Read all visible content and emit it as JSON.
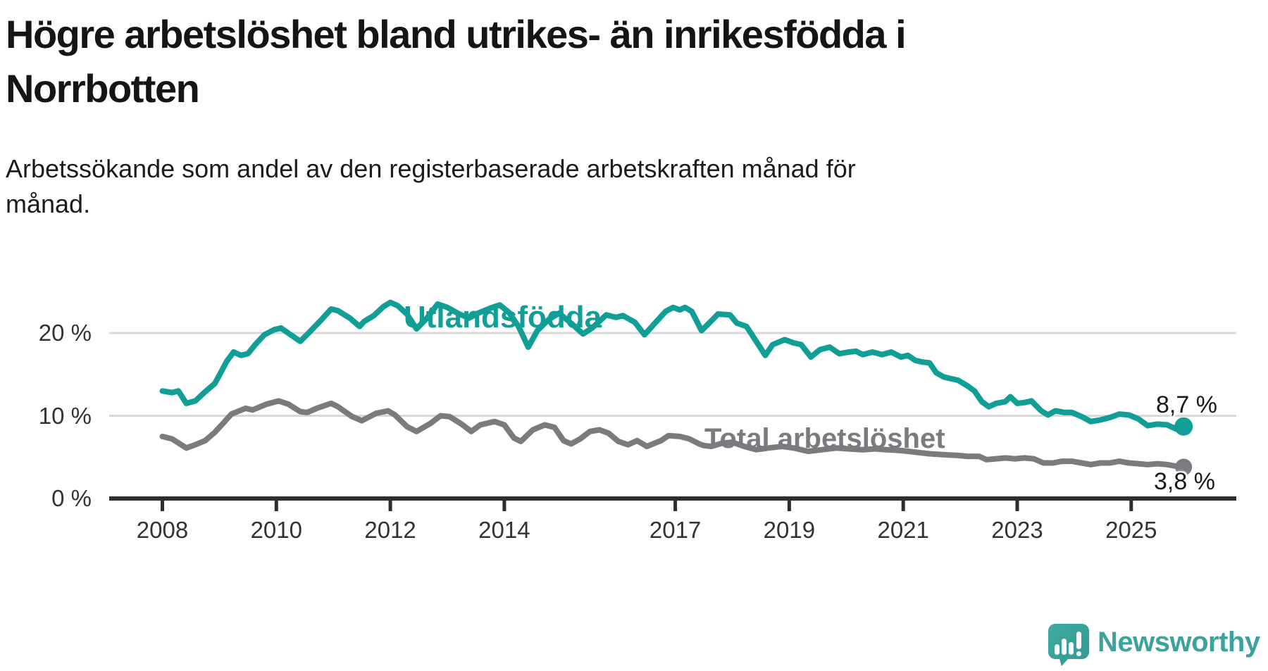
{
  "title": {
    "line1": "Högre arbetslöshet bland utrikes- än inrikesfödda i",
    "line2": "Norrbotten"
  },
  "subtitle": {
    "line1": "Arbetssökande som andel av den registerbaserade arbetskraften månad för",
    "line2": "månad."
  },
  "colors": {
    "teal_series": "#119e96",
    "gray_series": "#7b7b7f",
    "gridline": "#d8d8d8",
    "axis": "#2e2e2e",
    "tick_text": "#333333",
    "title_text": "#151515",
    "logo_teal": "#3ba39b"
  },
  "logo": {
    "text": "Newsworthy",
    "icon": "newsworthy-speech-bubble-bar-chart-icon"
  },
  "chart_data": {
    "type": "line",
    "title": "Högre arbetslöshet bland utrikes- än inrikesfödda i Norrbotten",
    "xlabel": "",
    "ylabel": "Arbetssökande som andel av den registerbaserade arbetskraften",
    "grid": "horizontal",
    "legend_position": "inline-labels",
    "xlim": [
      2007.95,
      2026.1
    ],
    "ylim": [
      0,
      29
    ],
    "x_ticks": [
      2008,
      2010,
      2012,
      2014,
      2017,
      2019,
      2021,
      2023,
      2025
    ],
    "y_ticks": [
      {
        "value": 20,
        "label": "20 %"
      },
      {
        "value": 10,
        "label": "10 %"
      },
      {
        "value": 0,
        "label": "0 %"
      }
    ],
    "series": [
      {
        "name": "Utlandsfödda",
        "color": "#119e96",
        "end_label": "8,7 %",
        "end_value": 8.7,
        "points": [
          [
            2008.0,
            13.0
          ],
          [
            2008.17,
            12.8
          ],
          [
            2008.28,
            13.0
          ],
          [
            2008.42,
            11.5
          ],
          [
            2008.58,
            11.8
          ],
          [
            2008.75,
            12.9
          ],
          [
            2008.92,
            13.9
          ],
          [
            2009.0,
            14.9
          ],
          [
            2009.13,
            16.6
          ],
          [
            2009.25,
            17.7
          ],
          [
            2009.38,
            17.3
          ],
          [
            2009.5,
            17.5
          ],
          [
            2009.63,
            18.6
          ],
          [
            2009.79,
            19.8
          ],
          [
            2009.96,
            20.4
          ],
          [
            2010.08,
            20.6
          ],
          [
            2010.25,
            19.8
          ],
          [
            2010.42,
            19.0
          ],
          [
            2010.58,
            20.1
          ],
          [
            2010.79,
            21.6
          ],
          [
            2010.96,
            22.9
          ],
          [
            2011.08,
            22.7
          ],
          [
            2011.29,
            21.8
          ],
          [
            2011.46,
            20.8
          ],
          [
            2011.54,
            21.4
          ],
          [
            2011.71,
            22.1
          ],
          [
            2011.88,
            23.2
          ],
          [
            2012.0,
            23.7
          ],
          [
            2012.13,
            23.3
          ],
          [
            2012.29,
            22.3
          ],
          [
            2012.46,
            20.5
          ],
          [
            2012.63,
            21.7
          ],
          [
            2012.83,
            23.5
          ],
          [
            2013.0,
            23.1
          ],
          [
            2013.21,
            22.3
          ],
          [
            2013.38,
            21.8
          ],
          [
            2013.54,
            22.4
          ],
          [
            2013.75,
            23.0
          ],
          [
            2013.92,
            23.4
          ],
          [
            2014.08,
            22.5
          ],
          [
            2014.25,
            20.8
          ],
          [
            2014.42,
            18.3
          ],
          [
            2014.58,
            20.3
          ],
          [
            2014.79,
            21.7
          ],
          [
            2014.96,
            22.4
          ],
          [
            2015.17,
            21.2
          ],
          [
            2015.38,
            19.9
          ],
          [
            2015.54,
            20.6
          ],
          [
            2015.79,
            22.2
          ],
          [
            2015.96,
            21.9
          ],
          [
            2016.08,
            22.1
          ],
          [
            2016.29,
            21.3
          ],
          [
            2016.46,
            19.8
          ],
          [
            2016.63,
            21.1
          ],
          [
            2016.83,
            22.6
          ],
          [
            2016.96,
            23.1
          ],
          [
            2017.08,
            22.8
          ],
          [
            2017.17,
            23.1
          ],
          [
            2017.29,
            22.6
          ],
          [
            2017.38,
            21.4
          ],
          [
            2017.46,
            20.3
          ],
          [
            2017.58,
            21.1
          ],
          [
            2017.75,
            22.3
          ],
          [
            2017.96,
            22.2
          ],
          [
            2018.08,
            21.2
          ],
          [
            2018.25,
            20.8
          ],
          [
            2018.42,
            19.0
          ],
          [
            2018.58,
            17.3
          ],
          [
            2018.71,
            18.6
          ],
          [
            2018.92,
            19.2
          ],
          [
            2019.08,
            18.8
          ],
          [
            2019.21,
            18.6
          ],
          [
            2019.38,
            17.1
          ],
          [
            2019.54,
            18.0
          ],
          [
            2019.71,
            18.3
          ],
          [
            2019.88,
            17.5
          ],
          [
            2020.04,
            17.7
          ],
          [
            2020.17,
            17.8
          ],
          [
            2020.29,
            17.4
          ],
          [
            2020.46,
            17.7
          ],
          [
            2020.63,
            17.4
          ],
          [
            2020.79,
            17.7
          ],
          [
            2020.96,
            17.1
          ],
          [
            2021.08,
            17.3
          ],
          [
            2021.21,
            16.7
          ],
          [
            2021.33,
            16.5
          ],
          [
            2021.46,
            16.4
          ],
          [
            2021.58,
            15.2
          ],
          [
            2021.71,
            14.7
          ],
          [
            2021.83,
            14.5
          ],
          [
            2021.96,
            14.3
          ],
          [
            2022.13,
            13.6
          ],
          [
            2022.25,
            13.0
          ],
          [
            2022.38,
            11.7
          ],
          [
            2022.5,
            11.1
          ],
          [
            2022.63,
            11.5
          ],
          [
            2022.79,
            11.7
          ],
          [
            2022.88,
            12.3
          ],
          [
            2023.0,
            11.5
          ],
          [
            2023.13,
            11.6
          ],
          [
            2023.25,
            11.8
          ],
          [
            2023.42,
            10.6
          ],
          [
            2023.54,
            10.1
          ],
          [
            2023.67,
            10.6
          ],
          [
            2023.83,
            10.4
          ],
          [
            2023.96,
            10.4
          ],
          [
            2024.13,
            9.9
          ],
          [
            2024.29,
            9.3
          ],
          [
            2024.46,
            9.5
          ],
          [
            2024.63,
            9.8
          ],
          [
            2024.79,
            10.2
          ],
          [
            2024.96,
            10.1
          ],
          [
            2025.13,
            9.6
          ],
          [
            2025.29,
            8.8
          ],
          [
            2025.46,
            9.0
          ],
          [
            2025.63,
            8.9
          ],
          [
            2025.79,
            8.4
          ],
          [
            2025.92,
            8.7
          ]
        ]
      },
      {
        "name": "Total arbetslöshet",
        "color": "#7b7b7f",
        "end_label": "3,8 %",
        "end_value": 3.8,
        "points": [
          [
            2008.0,
            7.5
          ],
          [
            2008.17,
            7.2
          ],
          [
            2008.42,
            6.1
          ],
          [
            2008.58,
            6.5
          ],
          [
            2008.75,
            7.0
          ],
          [
            2008.92,
            8.0
          ],
          [
            2009.08,
            9.2
          ],
          [
            2009.21,
            10.2
          ],
          [
            2009.46,
            10.9
          ],
          [
            2009.58,
            10.7
          ],
          [
            2009.83,
            11.4
          ],
          [
            2010.04,
            11.8
          ],
          [
            2010.21,
            11.4
          ],
          [
            2010.42,
            10.5
          ],
          [
            2010.54,
            10.4
          ],
          [
            2010.71,
            10.9
          ],
          [
            2010.96,
            11.5
          ],
          [
            2011.08,
            11.1
          ],
          [
            2011.33,
            9.9
          ],
          [
            2011.5,
            9.4
          ],
          [
            2011.75,
            10.3
          ],
          [
            2011.96,
            10.6
          ],
          [
            2012.08,
            10.1
          ],
          [
            2012.29,
            8.7
          ],
          [
            2012.46,
            8.1
          ],
          [
            2012.71,
            9.1
          ],
          [
            2012.88,
            10.0
          ],
          [
            2013.04,
            9.9
          ],
          [
            2013.25,
            9.0
          ],
          [
            2013.42,
            8.1
          ],
          [
            2013.58,
            8.9
          ],
          [
            2013.83,
            9.3
          ],
          [
            2014.0,
            8.9
          ],
          [
            2014.17,
            7.3
          ],
          [
            2014.29,
            6.9
          ],
          [
            2014.5,
            8.3
          ],
          [
            2014.71,
            8.9
          ],
          [
            2014.88,
            8.6
          ],
          [
            2015.04,
            7.0
          ],
          [
            2015.17,
            6.6
          ],
          [
            2015.33,
            7.2
          ],
          [
            2015.5,
            8.1
          ],
          [
            2015.67,
            8.3
          ],
          [
            2015.83,
            7.9
          ],
          [
            2016.0,
            6.9
          ],
          [
            2016.17,
            6.5
          ],
          [
            2016.33,
            7.0
          ],
          [
            2016.5,
            6.3
          ],
          [
            2016.75,
            7.0
          ],
          [
            2016.88,
            7.6
          ],
          [
            2017.08,
            7.5
          ],
          [
            2017.25,
            7.2
          ],
          [
            2017.42,
            6.6
          ],
          [
            2017.5,
            6.4
          ],
          [
            2017.63,
            6.3
          ],
          [
            2017.83,
            6.7
          ],
          [
            2018.0,
            6.8
          ],
          [
            2018.21,
            6.3
          ],
          [
            2018.42,
            5.9
          ],
          [
            2018.63,
            6.1
          ],
          [
            2018.88,
            6.3
          ],
          [
            2019.08,
            6.1
          ],
          [
            2019.33,
            5.7
          ],
          [
            2019.58,
            5.9
          ],
          [
            2019.83,
            6.1
          ],
          [
            2020.04,
            6.0
          ],
          [
            2020.29,
            5.9
          ],
          [
            2020.5,
            6.0
          ],
          [
            2020.71,
            5.9
          ],
          [
            2020.96,
            5.8
          ],
          [
            2021.21,
            5.6
          ],
          [
            2021.46,
            5.4
          ],
          [
            2021.71,
            5.3
          ],
          [
            2021.96,
            5.2
          ],
          [
            2022.13,
            5.1
          ],
          [
            2022.33,
            5.1
          ],
          [
            2022.46,
            4.7
          ],
          [
            2022.63,
            4.8
          ],
          [
            2022.79,
            4.9
          ],
          [
            2022.96,
            4.8
          ],
          [
            2023.13,
            4.9
          ],
          [
            2023.29,
            4.8
          ],
          [
            2023.46,
            4.3
          ],
          [
            2023.63,
            4.3
          ],
          [
            2023.79,
            4.5
          ],
          [
            2023.96,
            4.5
          ],
          [
            2024.13,
            4.3
          ],
          [
            2024.29,
            4.1
          ],
          [
            2024.46,
            4.3
          ],
          [
            2024.63,
            4.3
          ],
          [
            2024.79,
            4.5
          ],
          [
            2024.96,
            4.3
          ],
          [
            2025.13,
            4.2
          ],
          [
            2025.29,
            4.1
          ],
          [
            2025.46,
            4.2
          ],
          [
            2025.63,
            4.1
          ],
          [
            2025.79,
            3.9
          ],
          [
            2025.92,
            3.8
          ]
        ]
      }
    ]
  }
}
